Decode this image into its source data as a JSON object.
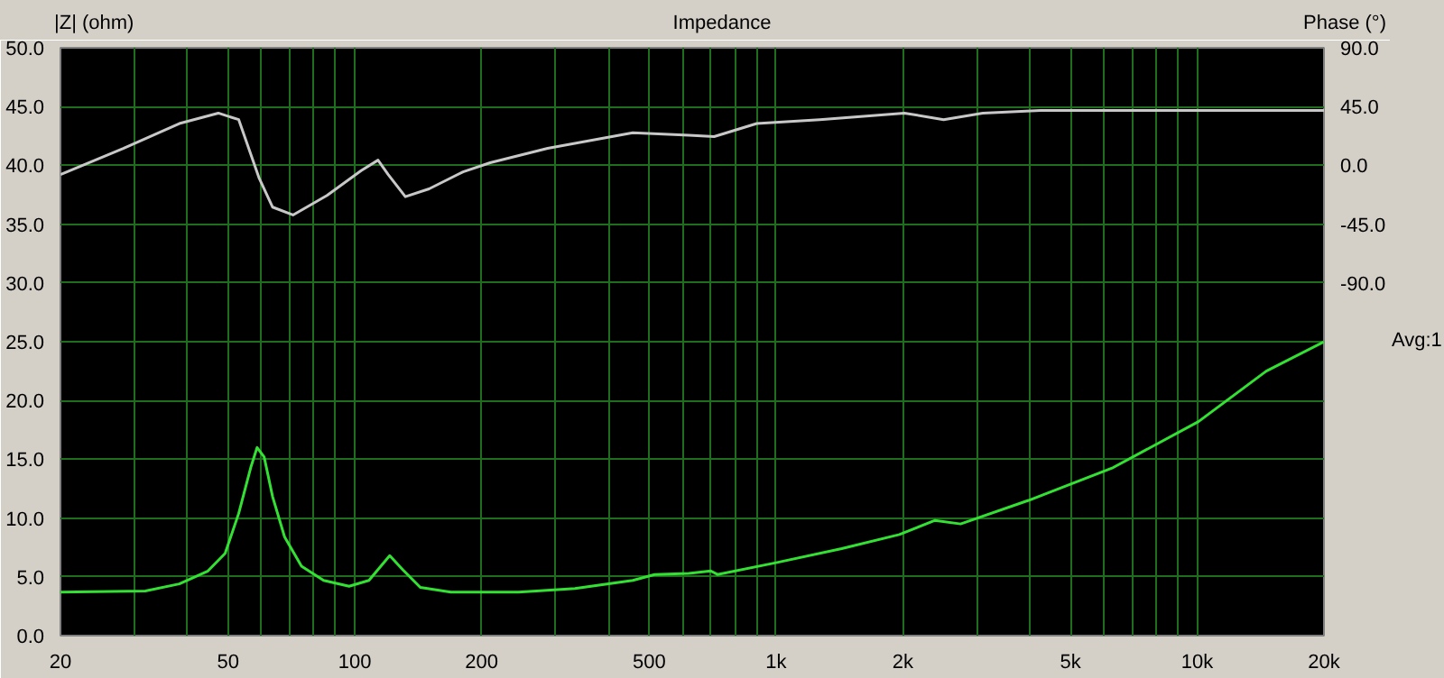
{
  "chart_data": {
    "type": "line",
    "title": "Impedance",
    "ylabel": "|Z| (ohm)",
    "y2label": "Phase (°)",
    "annotations": [
      "Avg:1"
    ],
    "log": "x",
    "grid": true,
    "marker": "none",
    "line_style": "solid",
    "xlim": [
      20,
      20000
    ],
    "xticks": [
      20,
      {
        "value": 30,
        "label": null
      },
      {
        "value": 40,
        "label": null
      },
      50,
      {
        "value": 60,
        "label": null
      },
      {
        "value": 70,
        "label": null
      },
      {
        "value": 80,
        "label": null
      },
      {
        "value": 90,
        "label": null
      },
      100,
      200,
      {
        "value": 300,
        "label": null
      },
      {
        "value": 400,
        "label": null
      },
      500,
      {
        "value": 600,
        "label": null
      },
      {
        "value": 700,
        "label": null
      },
      {
        "value": 800,
        "label": null
      },
      {
        "value": 900,
        "label": null
      },
      {
        "value": 1000,
        "label": "1k"
      },
      {
        "value": 2000,
        "label": "2k"
      },
      {
        "value": 3000,
        "label": null
      },
      {
        "value": 4000,
        "label": null
      },
      {
        "value": 5000,
        "label": "5k"
      },
      {
        "value": 6000,
        "label": null
      },
      {
        "value": 7000,
        "label": null
      },
      {
        "value": 8000,
        "label": null
      },
      {
        "value": 9000,
        "label": null
      },
      {
        "value": 10000,
        "label": "10k"
      },
      {
        "value": 20000,
        "label": "20k"
      }
    ],
    "ylim": [
      0,
      50
    ],
    "yticks": [
      {
        "value": 0,
        "label": "0.0"
      },
      {
        "value": 5,
        "label": "5.0"
      },
      {
        "value": 10,
        "label": "10.0"
      },
      {
        "value": 15,
        "label": "15.0"
      },
      {
        "value": 20,
        "label": "20.0"
      },
      {
        "value": 25,
        "label": "25.0"
      },
      {
        "value": 30,
        "label": "30.0"
      },
      {
        "value": 35,
        "label": "35.0"
      },
      {
        "value": 40,
        "label": "40.0"
      },
      {
        "value": 45,
        "label": "45.0"
      },
      {
        "value": 50,
        "label": "50.0"
      }
    ],
    "y2lim": [
      -360,
      90
    ],
    "y2ticks": [
      {
        "value": 90,
        "label": "90.0"
      },
      {
        "value": 45,
        "label": "45.0"
      },
      {
        "value": 0,
        "label": "0.0"
      },
      {
        "value": -45,
        "label": "-45.0"
      },
      {
        "value": -90,
        "label": "-90.0"
      }
    ],
    "series": [
      {
        "color": "#33e033",
        "x": [
          20,
          31.8,
          38.3,
          44.8,
          49.2,
          53,
          56.6,
          58.6,
          60.9,
          63.8,
          68.1,
          74.7,
          84.3,
          96.9,
          108,
          121,
          130,
          143,
          169,
          245,
          333,
          457,
          515,
          621,
          700,
          726,
          1000,
          1432,
          1963,
          2385,
          2743,
          3975,
          6320,
          10070,
          14590,
          20000
        ],
        "values": [
          3.7,
          3.8,
          4.4,
          5.5,
          7,
          10.4,
          14.3,
          16,
          15.2,
          11.8,
          8.4,
          5.9,
          4.7,
          4.2,
          4.7,
          6.8,
          5.6,
          4.1,
          3.7,
          3.7,
          4,
          4.7,
          5.2,
          5.3,
          5.5,
          5.2,
          6.2,
          7.4,
          8.6,
          9.8,
          9.5,
          11.5,
          14.3,
          18.2,
          22.5,
          25
        ]
      },
      {
        "color": "#c8c8c8",
        "axis": "y2",
        "x": [
          20,
          28.2,
          38.3,
          47.4,
          53,
          59.3,
          63.8,
          71.3,
          85.9,
          103.5,
          113.5,
          120,
          131.8,
          150,
          180.7,
          209.5,
          287,
          457,
          621,
          713,
          900,
          1270,
          2018,
          2500,
          3097,
          4250,
          8600,
          13680,
          20000
        ],
        "values": [
          -7,
          13,
          32,
          40,
          35,
          -10,
          -32,
          -38,
          -23,
          -4,
          4,
          -7,
          -24,
          -18,
          -5,
          2,
          13,
          25,
          23,
          22,
          32,
          35,
          40,
          35,
          40,
          42,
          42,
          42,
          42
        ]
      }
    ]
  }
}
